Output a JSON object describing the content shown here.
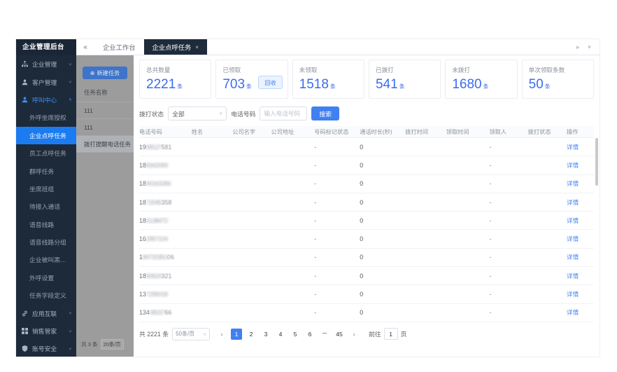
{
  "colors": {
    "accent": "#4080f0",
    "sidebar_bg": "#1d2a39",
    "active_menu_bg": "#1b7cf2",
    "number_blue": "#3b6cf0",
    "active_tab_bg": "#1e2b3a"
  },
  "sidebar": {
    "title": "企业管理后台",
    "menu": [
      {
        "label": "企业管理",
        "type": "group",
        "icon": "org-icon",
        "chevron": "down"
      },
      {
        "label": "客户管理",
        "type": "group",
        "icon": "customer-icon",
        "chevron": "down"
      },
      {
        "label": "呼叫中心",
        "type": "group",
        "icon": "call-center-icon",
        "chevron": "up",
        "section_active": true
      },
      {
        "label": "外呼坐席授权",
        "type": "sub"
      },
      {
        "label": "企业点呼任务",
        "type": "sub",
        "active": true
      },
      {
        "label": "员工点呼任务",
        "type": "sub"
      },
      {
        "label": "群呼任务",
        "type": "sub"
      },
      {
        "label": "坐席班组",
        "type": "sub"
      },
      {
        "label": "待接入通话",
        "type": "sub"
      },
      {
        "label": "语音线路",
        "type": "sub"
      },
      {
        "label": "语音线路分组",
        "type": "sub"
      },
      {
        "label": "企业被叫黑名单",
        "type": "sub"
      },
      {
        "label": "外呼设置",
        "type": "sub"
      },
      {
        "label": "任务字段定义",
        "type": "sub"
      },
      {
        "label": "应用互联",
        "type": "group",
        "icon": "link-icon",
        "chevron": "down"
      },
      {
        "label": "销售管家",
        "type": "group",
        "icon": "grid-icon",
        "chevron": "down"
      },
      {
        "label": "账号安全",
        "type": "group",
        "icon": "shield-icon",
        "chevron": "down"
      }
    ]
  },
  "tabbar": {
    "collapse_icon": "«",
    "tabs": [
      {
        "label": "企业工作台",
        "active": false,
        "closable": false
      },
      {
        "label": "企业点呼任务",
        "active": true,
        "closable": true
      }
    ],
    "close_icon": "×",
    "overflow_icon": "»",
    "dropdown_icon": "∨"
  },
  "task_panel": {
    "new_task_button": "新建任务",
    "new_task_icon": "⊕",
    "list_header": "任务名称",
    "tasks": [
      {
        "name": "111",
        "selected": false
      },
      {
        "name": "111",
        "selected": false
      },
      {
        "name": "拨打提醒电话任务",
        "selected": true
      }
    ],
    "footer_total": "共 3 条",
    "footer_page_size": "20条/页"
  },
  "stats": {
    "cards": [
      {
        "label": "总共数量",
        "value": "2221",
        "unit": "条"
      },
      {
        "label": "已领取",
        "value": "703",
        "unit": "条",
        "button": "回收"
      },
      {
        "label": "未领取",
        "value": "1518",
        "unit": "条"
      },
      {
        "label": "已拨打",
        "value": "541",
        "unit": "条"
      },
      {
        "label": "未拨打",
        "value": "1680",
        "unit": "条"
      },
      {
        "label": "单次领取条数",
        "value": "50",
        "unit": "条"
      }
    ]
  },
  "filters": {
    "status_label": "拨打状态",
    "status_value": "全部",
    "phone_label": "电话号码",
    "phone_placeholder": "输入电话号码",
    "search_button": "搜索"
  },
  "table": {
    "columns": [
      "电话号码",
      "姓名",
      "公司名字",
      "公司地址",
      "号码标记状态",
      "通话时长(秒)",
      "拨打时间",
      "领取时间",
      "领取人",
      "拨打状态",
      "操作"
    ],
    "rows": [
      {
        "phone_prefix": "19",
        "phone_masked": "58127",
        "phone_suffix": "581",
        "name": "",
        "company": "",
        "address": "",
        "mark_status": "-",
        "duration": "0",
        "call_time": "",
        "claim_time": "",
        "claimer": "-",
        "call_status": "",
        "action": "详情"
      },
      {
        "phone_prefix": "18",
        "phone_masked": "8342059",
        "phone_suffix": "",
        "name": "",
        "company": "",
        "address": "",
        "mark_status": "-",
        "duration": "0",
        "call_time": "",
        "claim_time": "",
        "claimer": "-",
        "call_status": "",
        "action": "详情"
      },
      {
        "phone_prefix": "18",
        "phone_masked": "90163284",
        "phone_suffix": "",
        "name": "",
        "company": "",
        "address": "",
        "mark_status": "-",
        "duration": "0",
        "call_time": "",
        "claim_time": "",
        "claimer": "-",
        "call_status": "",
        "action": "详情"
      },
      {
        "phone_prefix": "18",
        "phone_masked": "72045",
        "phone_suffix": "358",
        "name": "",
        "company": "",
        "address": "",
        "mark_status": "-",
        "duration": "0",
        "call_time": "",
        "claim_time": "",
        "claimer": "-",
        "call_status": "",
        "action": "详情"
      },
      {
        "phone_prefix": "18",
        "phone_masked": "6138472",
        "phone_suffix": "",
        "name": "",
        "company": "",
        "address": "",
        "mark_status": "-",
        "duration": "0",
        "call_time": "",
        "claim_time": "",
        "claimer": "-",
        "call_status": "",
        "action": "详情"
      },
      {
        "phone_prefix": "16",
        "phone_masked": "2957104",
        "phone_suffix": "",
        "name": "",
        "company": "",
        "address": "",
        "mark_status": "-",
        "duration": "0",
        "call_time": "",
        "claim_time": "",
        "claimer": "-",
        "call_status": "",
        "action": "详情"
      },
      {
        "phone_prefix": "1",
        "phone_masked": "84720351",
        "phone_suffix": "06",
        "name": "",
        "company": "",
        "address": "",
        "mark_status": "-",
        "duration": "0",
        "call_time": "",
        "claim_time": "",
        "claimer": "-",
        "call_status": "",
        "action": "详情"
      },
      {
        "phone_prefix": "18",
        "phone_masked": "50624",
        "phone_suffix": "321",
        "name": "",
        "company": "",
        "address": "",
        "mark_status": "-",
        "duration": "0",
        "call_time": "",
        "claim_time": "",
        "claimer": "-",
        "call_status": "",
        "action": "详情"
      },
      {
        "phone_prefix": "13",
        "phone_masked": "7295018",
        "phone_suffix": "",
        "name": "",
        "company": "",
        "address": "",
        "mark_status": "-",
        "duration": "0",
        "call_time": "",
        "claim_time": "",
        "claimer": "-",
        "call_status": "",
        "action": "详情"
      },
      {
        "phone_prefix": "134",
        "phone_masked": "08157",
        "phone_suffix": "66",
        "name": "",
        "company": "",
        "address": "",
        "mark_status": "-",
        "duration": "0",
        "call_time": "",
        "claim_time": "",
        "claimer": "-",
        "call_status": "",
        "action": "详情"
      }
    ]
  },
  "pagination": {
    "total": "共 2221 条",
    "page_size": "50条/页",
    "prev_icon": "‹",
    "next_icon": "›",
    "pages": [
      "1",
      "2",
      "3",
      "4",
      "5",
      "6",
      "...",
      "45"
    ],
    "active_page": "1",
    "goto_label": "前往",
    "goto_value": "1",
    "goto_unit": "页"
  }
}
